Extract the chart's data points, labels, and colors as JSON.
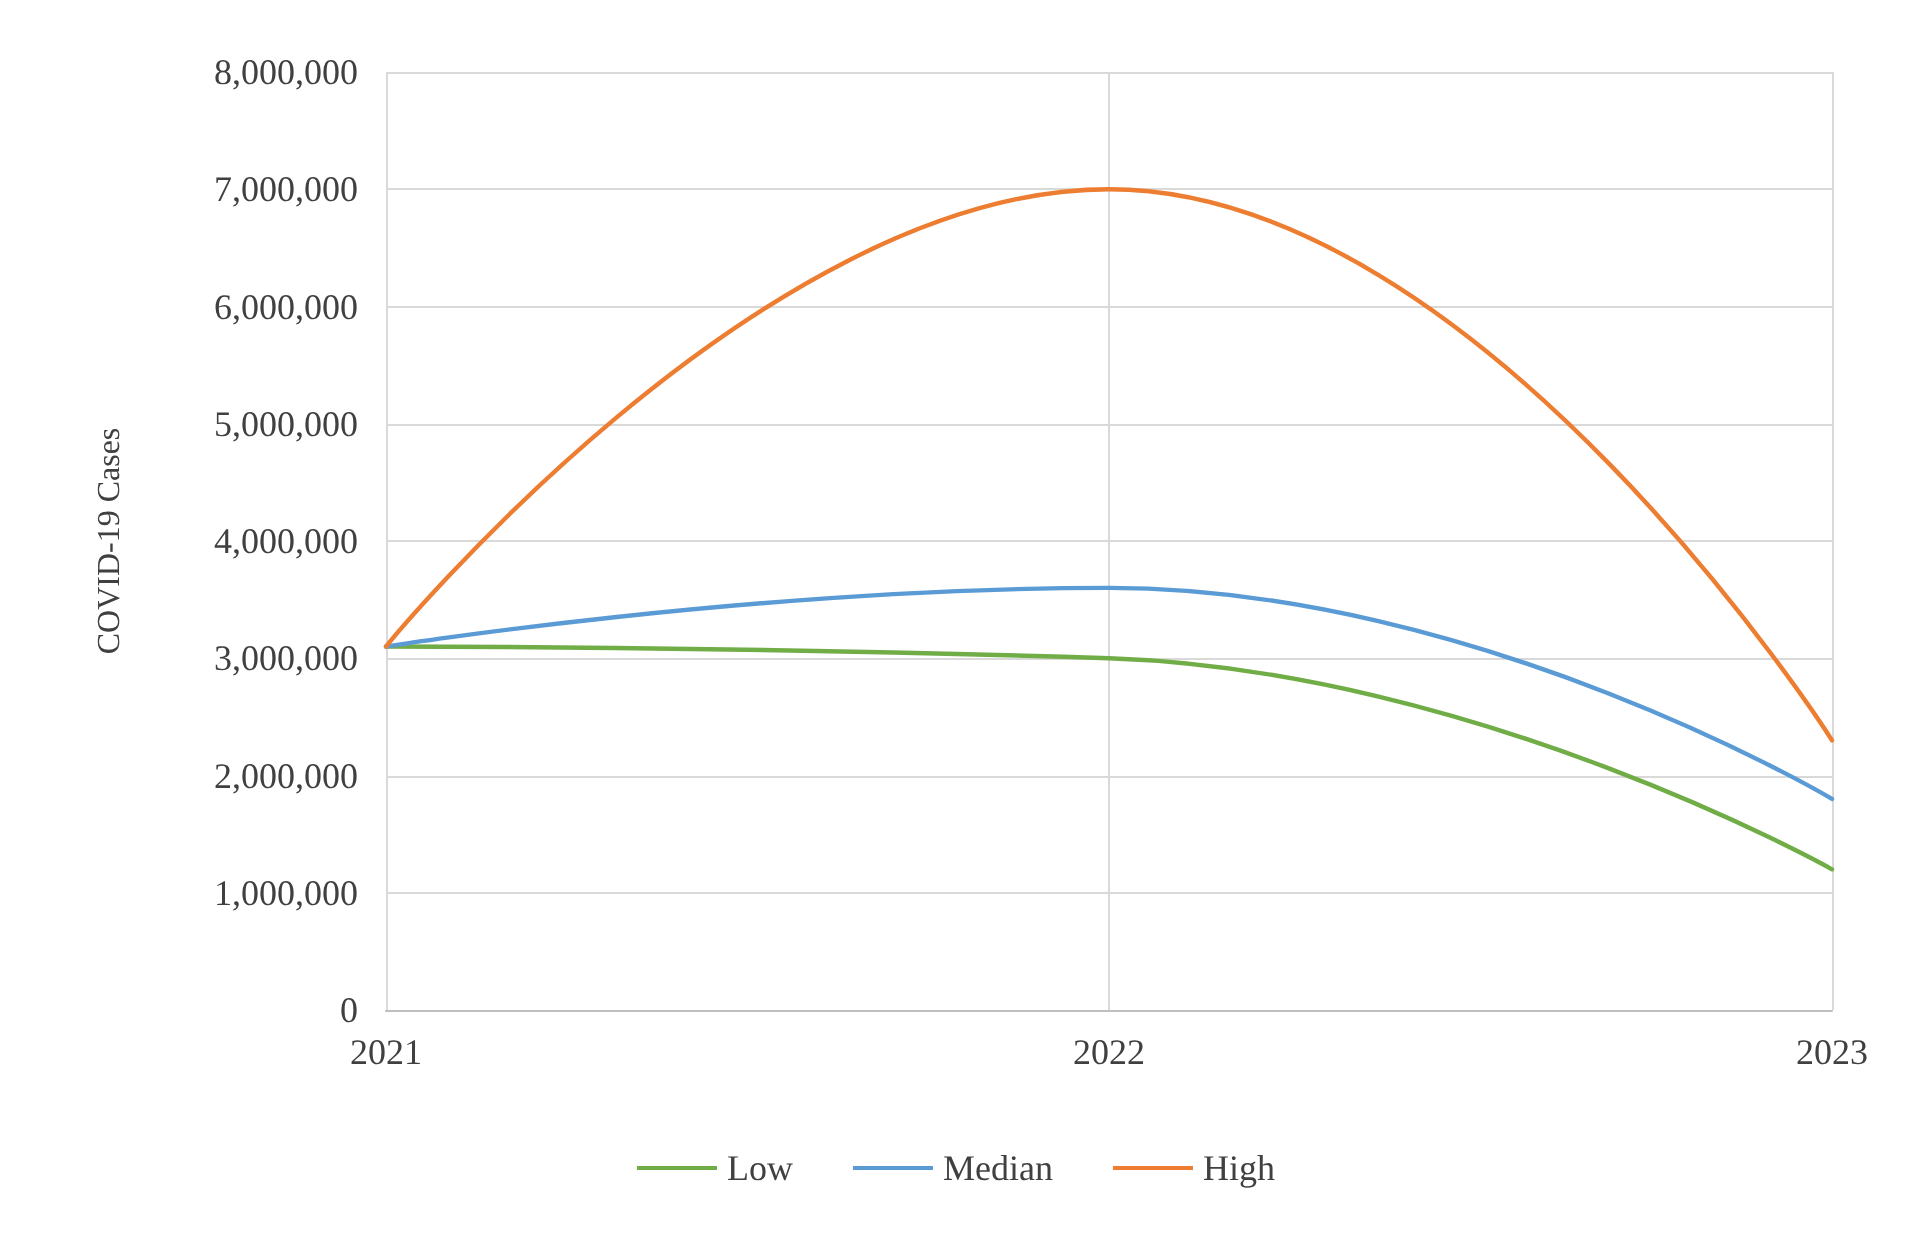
{
  "chart_data": {
    "type": "line",
    "x": [
      2021,
      2022,
      2023
    ],
    "xlim": [
      2021,
      2023
    ],
    "xticks": [
      2021,
      2022,
      2023
    ],
    "ylim": [
      0,
      8000000
    ],
    "yticks": [
      0,
      {
        "value": 1000000,
        "label": "1,000,000"
      },
      {
        "value": 2000000,
        "label": "2,000,000"
      },
      {
        "value": 3000000,
        "label": "3,000,000"
      },
      {
        "value": 4000000,
        "label": "4,000,000"
      },
      {
        "value": 5000000,
        "label": "5,000,000"
      },
      {
        "value": 6000000,
        "label": "6,000,000"
      },
      {
        "value": 7000000,
        "label": "7,000,000"
      },
      {
        "value": 8000000,
        "label": "8,000,000"
      }
    ],
    "ylabel": "COVID-19 Cases",
    "series": [
      {
        "name": "Low",
        "color": "#70ad47",
        "values": [
          3100000,
          3000000,
          1200000
        ]
      },
      {
        "name": "Median",
        "color": "#5b9bd5",
        "values": [
          3100000,
          3600000,
          1800000
        ]
      },
      {
        "name": "High",
        "color": "#ed7d31",
        "values": [
          3100000,
          7000000,
          2300000
        ]
      }
    ],
    "grid": true,
    "legend": "bottom",
    "marker": "none",
    "line_style": "solid"
  }
}
